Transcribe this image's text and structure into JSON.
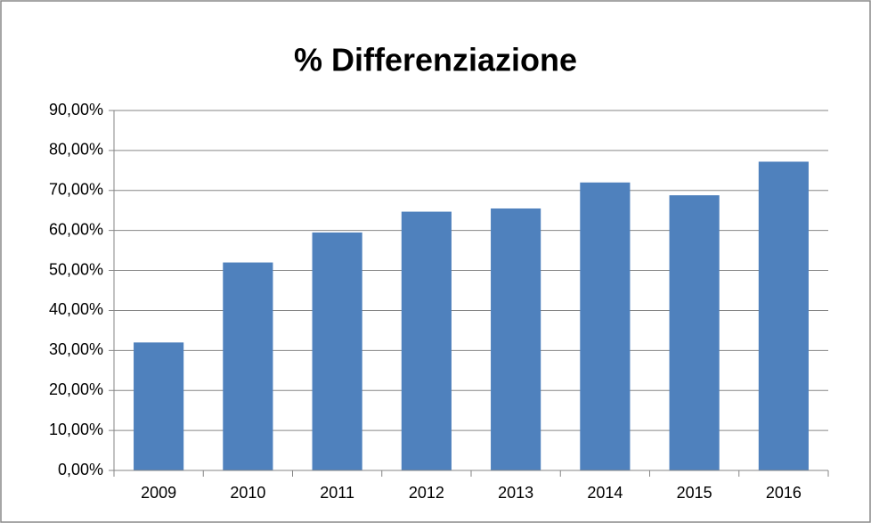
{
  "chart_data": {
    "type": "bar",
    "title": "% Differenziazione",
    "categories": [
      "2009",
      "2010",
      "2011",
      "2012",
      "2013",
      "2014",
      "2015",
      "2016"
    ],
    "values": [
      32,
      52,
      59.5,
      64.7,
      65.5,
      72,
      68.8,
      77.2
    ],
    "color": "#4f81bd",
    "ylim": [
      0,
      90
    ],
    "yticks": [
      {
        "value": 0,
        "label": "0,00%"
      },
      {
        "value": 10,
        "label": "10,00%"
      },
      {
        "value": 20,
        "label": "20,00%"
      },
      {
        "value": 30,
        "label": "30,00%"
      },
      {
        "value": 40,
        "label": "40,00%"
      },
      {
        "value": 50,
        "label": "50,00%"
      },
      {
        "value": 60,
        "label": "60,00%"
      },
      {
        "value": 70,
        "label": "70,00%"
      },
      {
        "value": 80,
        "label": "80,00%"
      },
      {
        "value": 90,
        "label": "90,00%"
      }
    ],
    "grid": true
  }
}
